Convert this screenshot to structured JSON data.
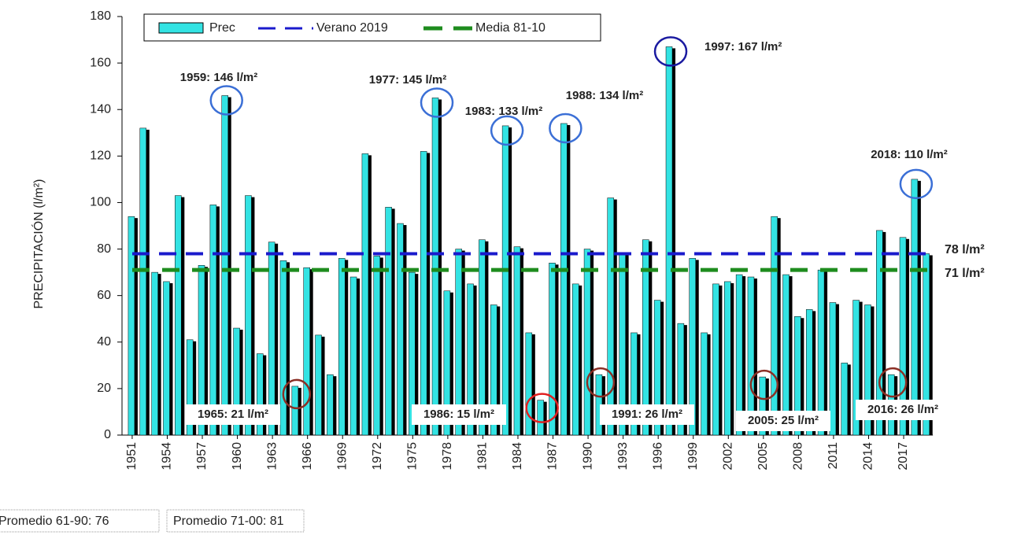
{
  "chart_data": {
    "type": "bar",
    "y_label": "PRECIPITACIÓN (l/m²)",
    "categories": [
      "1951",
      null,
      null,
      "1954",
      null,
      null,
      "1957",
      null,
      null,
      "1960",
      null,
      null,
      "1963",
      null,
      null,
      "1966",
      null,
      null,
      "1969",
      null,
      null,
      "1972",
      null,
      null,
      "1975",
      null,
      null,
      "1978",
      null,
      null,
      "1981",
      null,
      null,
      "1984",
      null,
      null,
      "1987",
      null,
      null,
      "1990",
      null,
      null,
      "1993",
      null,
      null,
      "1996",
      null,
      null,
      "1999",
      null,
      null,
      "2002",
      null,
      null,
      "2005",
      null,
      null,
      "2008",
      null,
      null,
      "2011",
      null,
      null,
      "2014",
      null,
      null,
      "2017",
      null,
      null
    ],
    "series": [
      {
        "name": "Prec",
        "color": "#33e3e3",
        "values": [
          94,
          132,
          70,
          66,
          103,
          41,
          73,
          99,
          146,
          46,
          103,
          35,
          83,
          75,
          21,
          72,
          43,
          26,
          76,
          68,
          121,
          77,
          98,
          91,
          70,
          122,
          145,
          62,
          80,
          65,
          84,
          56,
          133,
          81,
          44,
          15,
          74,
          134,
          65,
          80,
          26,
          102,
          78,
          44,
          84,
          58,
          167,
          48,
          76,
          44,
          65,
          66,
          69,
          68,
          25,
          94,
          69,
          51,
          54,
          71,
          57,
          31,
          58,
          56,
          88,
          26,
          85,
          110,
          78
        ]
      }
    ],
    "reference_lines": [
      {
        "name": "Verano 2019",
        "value": 78,
        "value_label": "78 l/m²",
        "color": "#1a1acc"
      },
      {
        "name": "Media 81-10",
        "value": 71,
        "value_label": "71 l/m²",
        "color": "#1e8c1e"
      }
    ],
    "ylim": [
      0,
      180
    ],
    "yticks": [
      0,
      20,
      40,
      60,
      80,
      100,
      120,
      140,
      160,
      180
    ],
    "grid": false,
    "annotations": [
      {
        "text": "1959: 146 l/m²",
        "color": "#3b6fd6"
      },
      {
        "text": "1977: 145 l/m²",
        "color": "#3b6fd6"
      },
      {
        "text": "1983: 133 l/m²",
        "color": "#3b6fd6"
      },
      {
        "text": "1988: 134 l/m²",
        "color": "#3b6fd6"
      },
      {
        "text": "1997: 167 l/m²",
        "color": "#1a1aa0"
      },
      {
        "text": "2018: 110 l/m²",
        "color": "#3b6fd6"
      },
      {
        "text": "1965: 21 l/m²",
        "color": "#8b2f25"
      },
      {
        "text": "1986: 15 l/m²",
        "color": "#e02020"
      },
      {
        "text": "1991: 26 l/m²",
        "color": "#8b2f25"
      },
      {
        "text": "2005: 25 l/m²",
        "color": "#8b2f25"
      },
      {
        "text": "2016: 26 l/m²",
        "color": "#8b2f25"
      }
    ],
    "notes": [
      "Promedio 61-90: 76",
      "Promedio 71-00: 81"
    ]
  }
}
